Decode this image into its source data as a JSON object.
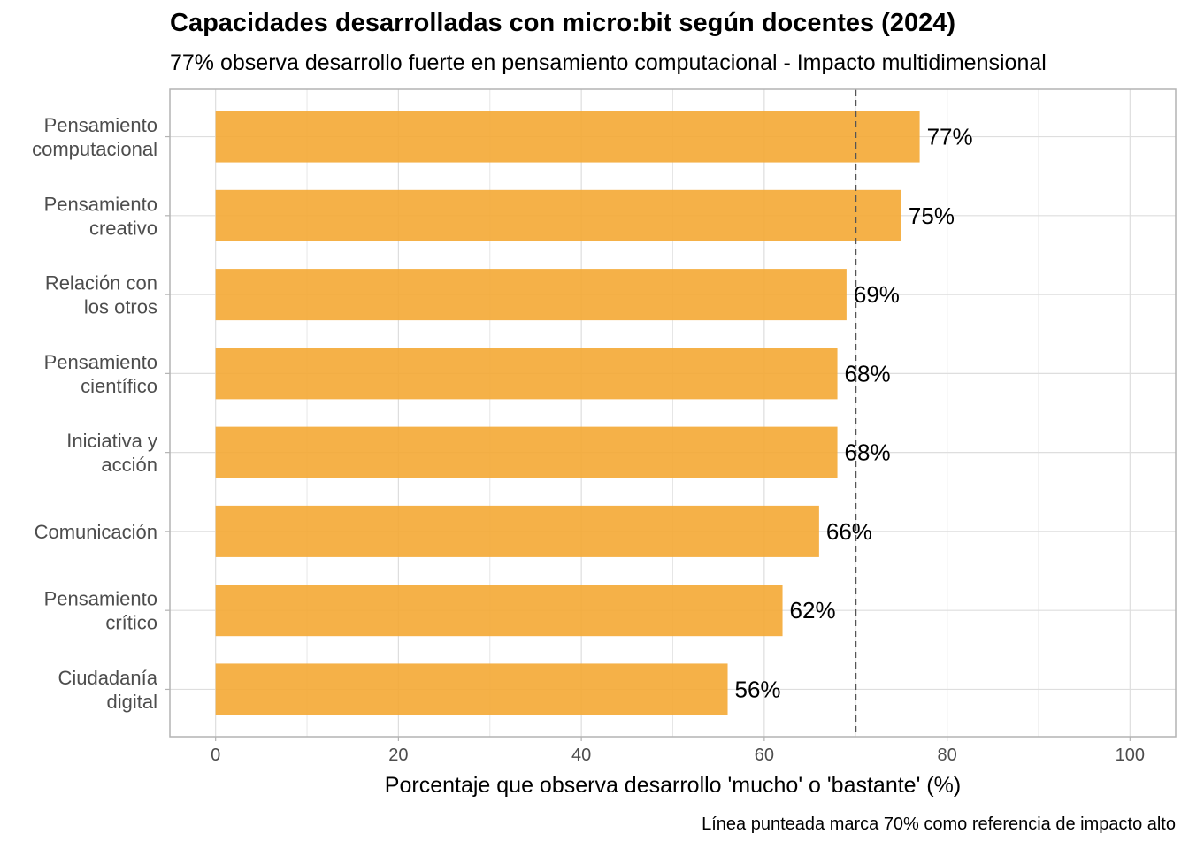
{
  "chart_data": {
    "type": "bar",
    "orientation": "horizontal",
    "title": "Capacidades desarrolladas con micro:bit según docentes (2024)",
    "subtitle": "77% observa desarrollo fuerte en pensamiento computacional - Impacto multidimensional",
    "xlabel": "Porcentaje que observa desarrollo 'mucho' o 'bastante' (%)",
    "ylabel": "",
    "caption": "Línea punteada marca 70% como referencia de impacto alto",
    "xlim": [
      -5,
      105
    ],
    "x_ticks": [
      0,
      20,
      40,
      60,
      80,
      100
    ],
    "x_tick_labels": [
      "0",
      "20",
      "40",
      "60",
      "80",
      "100"
    ],
    "grid": true,
    "legend": "none",
    "bar_color": "#F4A934",
    "reference_line": {
      "value": 70,
      "style": "dashed",
      "color": "#555555"
    },
    "categories": [
      [
        "Pensamiento",
        "computacional"
      ],
      [
        "Pensamiento",
        "creativo"
      ],
      [
        "Relación con",
        "los otros"
      ],
      [
        "Pensamiento",
        "científico"
      ],
      [
        "Iniciativa y",
        "acción"
      ],
      [
        "Comunicación"
      ],
      [
        "Pensamiento",
        "crítico"
      ],
      [
        "Ciudadanía",
        "digital"
      ]
    ],
    "values": [
      77,
      75,
      69,
      68,
      68,
      66,
      62,
      56
    ],
    "data_labels": [
      "77%",
      "75%",
      "69%",
      "68%",
      "68%",
      "66%",
      "62%",
      "56%"
    ]
  }
}
